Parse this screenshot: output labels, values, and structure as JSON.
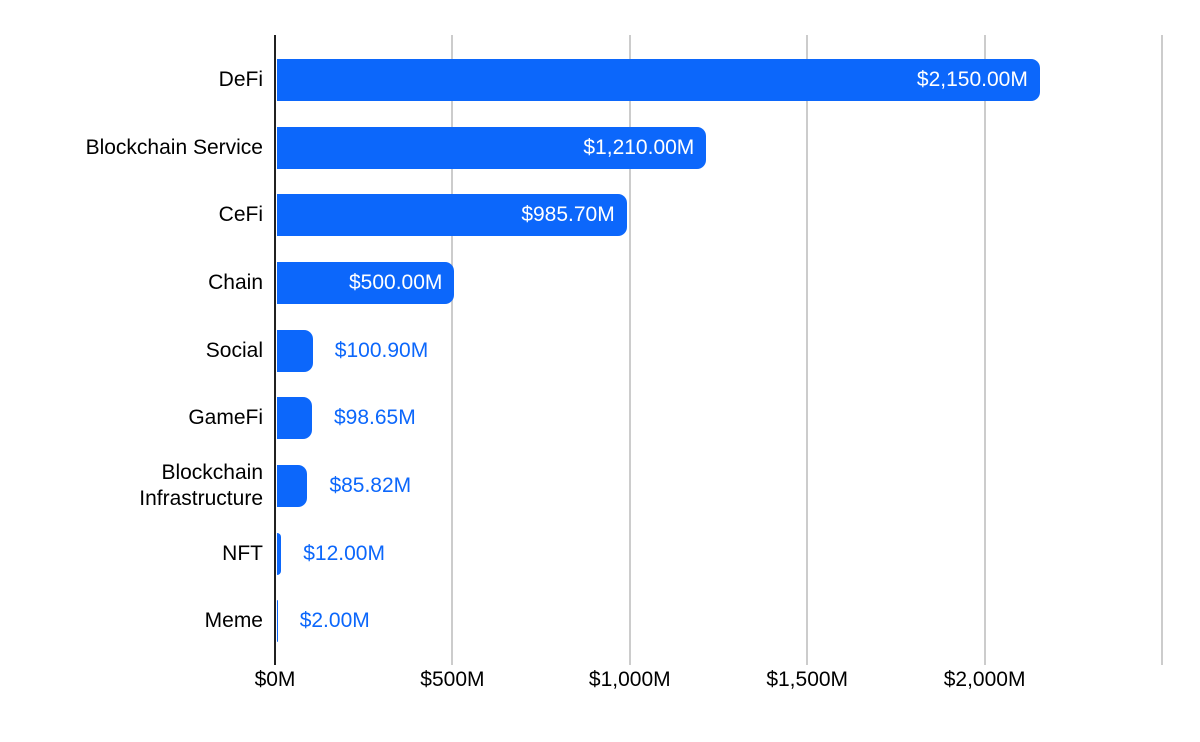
{
  "chart_data": {
    "type": "bar",
    "orientation": "horizontal",
    "title": "",
    "xlabel": "",
    "ylabel": "",
    "legend": "none",
    "grid": true,
    "xlim": [
      0,
      2500
    ],
    "categories": [
      "DeFi",
      "Blockchain Service",
      "CeFi",
      "Chain",
      "Social",
      "GameFi",
      "Blockchain\nInfrastructure",
      "NFT",
      "Meme"
    ],
    "values": [
      2150,
      1210,
      985.7,
      500,
      100.9,
      98.65,
      85.82,
      12,
      2
    ],
    "value_labels": [
      "$2,150.00M",
      "$1,210.00M",
      "$985.70M",
      "$500.00M",
      "$100.90M",
      "$98.65M",
      "$85.82M",
      "$12.00M",
      "$2.00M"
    ],
    "x_ticks": [
      {
        "value": 0,
        "label": "$0M"
      },
      {
        "value": 500,
        "label": "$500M"
      },
      {
        "value": 1000,
        "label": "$1,000M"
      },
      {
        "value": 1500,
        "label": "$1,500M"
      },
      {
        "value": 2000,
        "label": "$2,000M"
      },
      {
        "value": 2500,
        "label": ""
      }
    ]
  },
  "colors": {
    "bar": "#0c67fb",
    "value_label_inside": "#ffffff",
    "value_label_outside": "#0c67fb",
    "gridline": "#cccccc",
    "axis_line": "#212121",
    "text": "#000000",
    "background": "#ffffff"
  }
}
